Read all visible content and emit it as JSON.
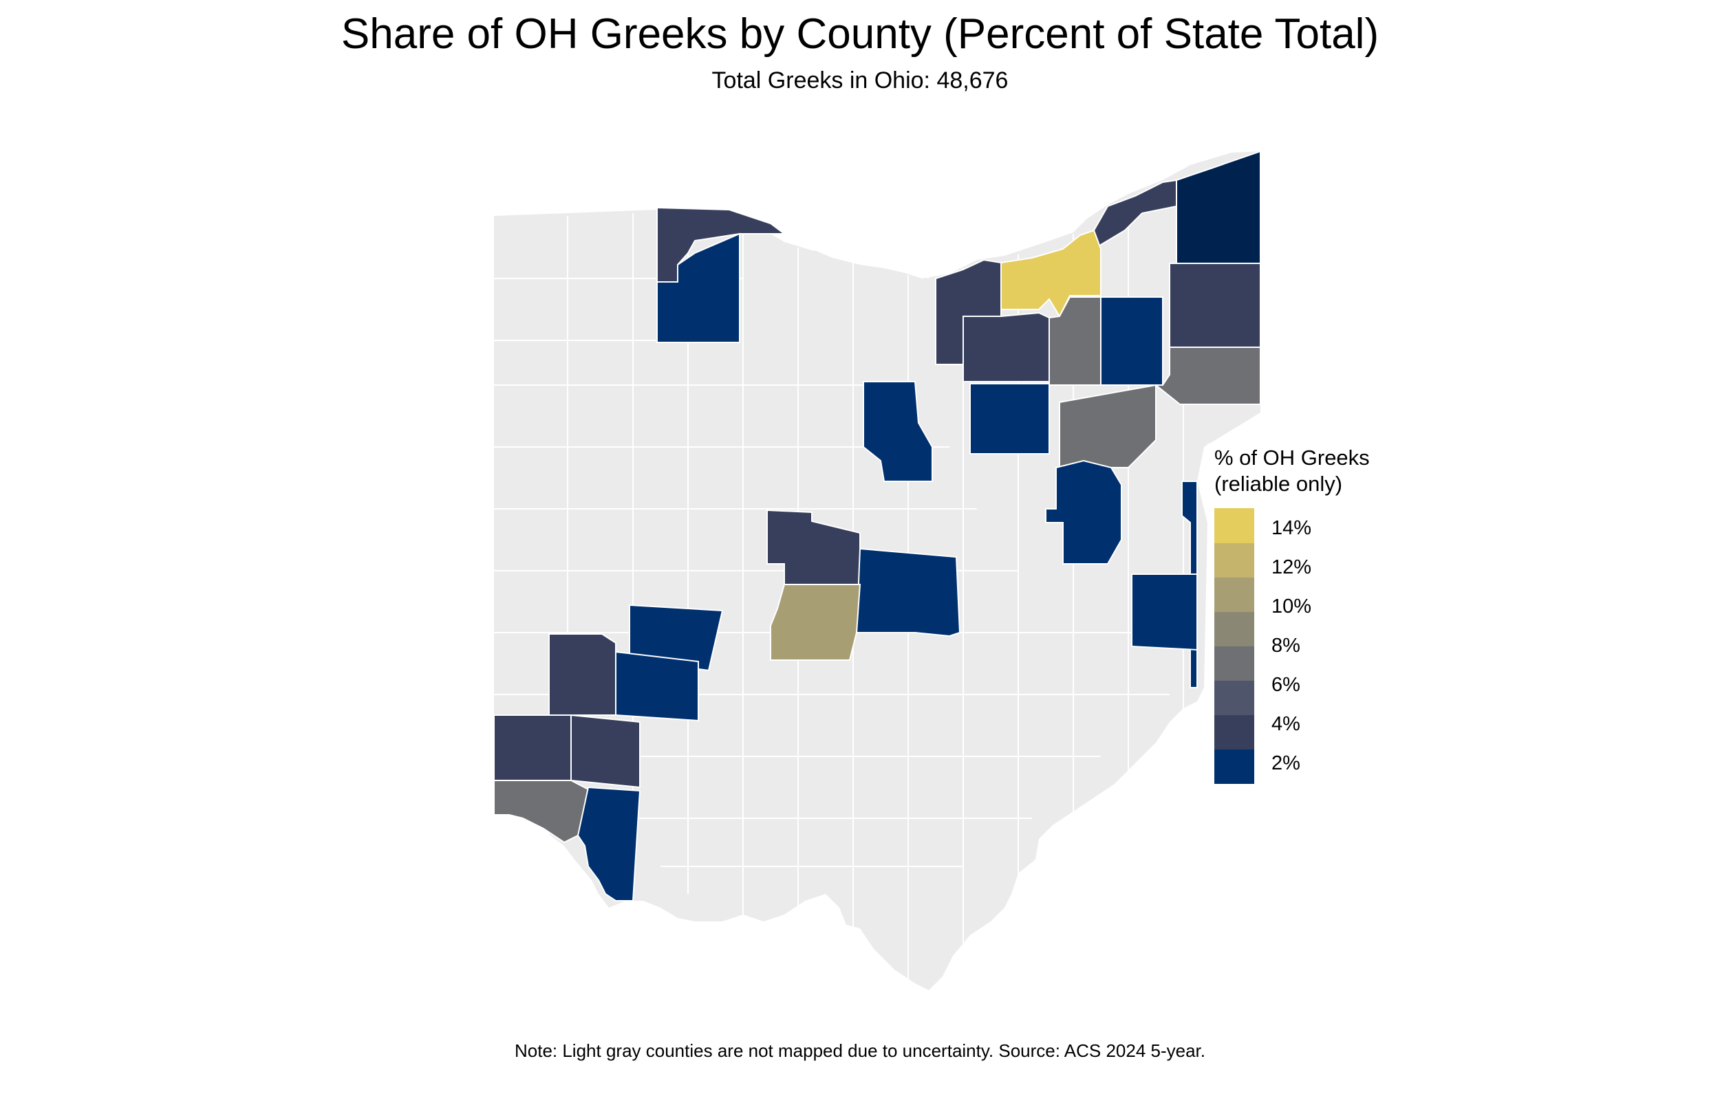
{
  "title": "Share of OH Greeks by County (Percent of State Total)",
  "subtitle": "Total Greeks in Ohio: 48,676",
  "note": "Note: Light gray counties are not mapped due to uncertainty. Source: ACS 2024 5-year.",
  "legend": {
    "title": "% of OH Greeks\n(reliable only)",
    "breaks": [
      {
        "label": "14%",
        "value": 14
      },
      {
        "label": "12%",
        "value": 12
      },
      {
        "label": "10%",
        "value": 10
      },
      {
        "label": "8%",
        "value": 8
      },
      {
        "label": "6%",
        "value": 6
      },
      {
        "label": "4%",
        "value": 4
      },
      {
        "label": "2%",
        "value": 2
      }
    ],
    "range": [
      1,
      15
    ],
    "colors": [
      "#00306e",
      "#373f5c",
      "#4f566b",
      "#6f7073",
      "#8a8875",
      "#a89e73",
      "#c4b46c",
      "#e4cd5c"
    ]
  },
  "colors": {
    "unmapped": "#ebebeb",
    "border": "#ffffff"
  },
  "chart_data": {
    "type": "choropleth",
    "region": "Ohio counties",
    "counties": [
      {
        "name": "Cuyahoga",
        "value": 15.0
      },
      {
        "name": "Franklin",
        "value": 10.5
      },
      {
        "name": "Summit",
        "value": 6.5
      },
      {
        "name": "Stark",
        "value": 6.5
      },
      {
        "name": "Mahoning",
        "value": 6.5
      },
      {
        "name": "Hamilton",
        "value": 6.5
      },
      {
        "name": "Ashtabula",
        "value": 1.5
      },
      {
        "name": "Lake",
        "value": 3.5
      },
      {
        "name": "Lucas",
        "value": 3.5
      },
      {
        "name": "Trumbull",
        "value": 3.5
      },
      {
        "name": "Lorain",
        "value": 3.5
      },
      {
        "name": "Medina",
        "value": 3.5
      },
      {
        "name": "Delaware",
        "value": 3.5
      },
      {
        "name": "Montgomery",
        "value": 3.5
      },
      {
        "name": "Butler",
        "value": 3.5
      },
      {
        "name": "Warren",
        "value": 3.5
      },
      {
        "name": "Wood",
        "value": 1.5
      },
      {
        "name": "Portage",
        "value": 1.5
      },
      {
        "name": "Wayne",
        "value": 1.5
      },
      {
        "name": "Richland",
        "value": 1.5
      },
      {
        "name": "Tuscarawas",
        "value": 1.5
      },
      {
        "name": "Licking",
        "value": 1.5
      },
      {
        "name": "Belmont",
        "value": 1.5
      },
      {
        "name": "Jefferson",
        "value": 1.5
      },
      {
        "name": "Clark",
        "value": 1.5
      },
      {
        "name": "Greene",
        "value": 1.5
      },
      {
        "name": "Clermont",
        "value": 1.5
      }
    ]
  }
}
